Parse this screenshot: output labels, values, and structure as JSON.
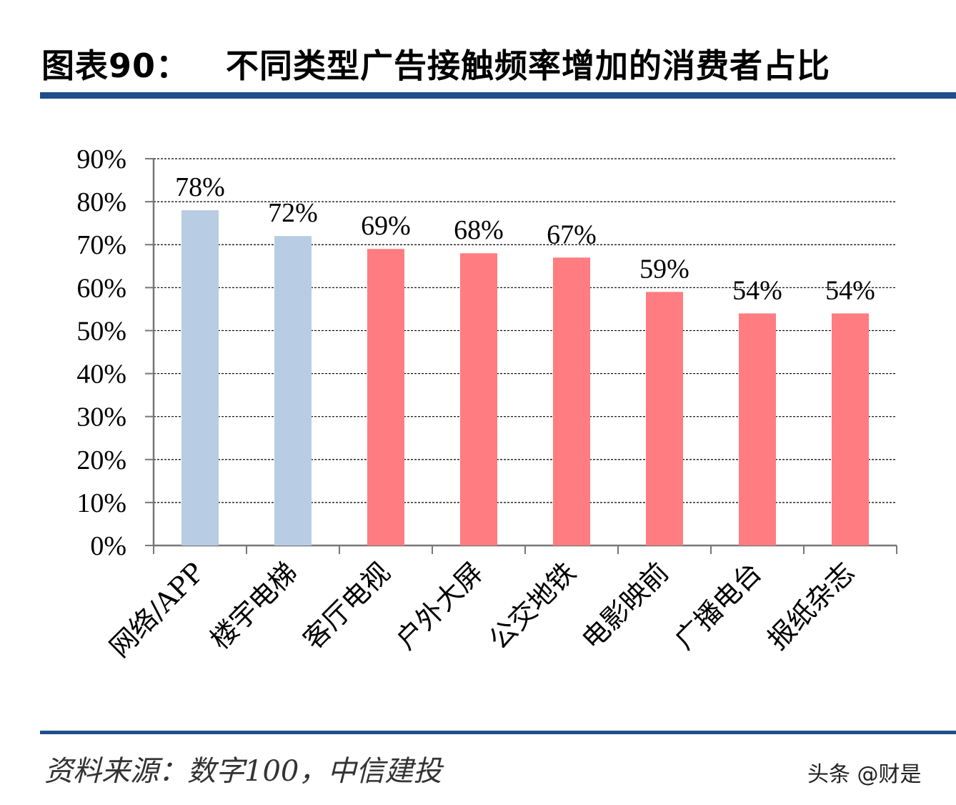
{
  "title": "图表90：   不同类型广告接触频率增加的消费者占比",
  "source": "资料来源：数字100，中信建投",
  "watermark": "头条 @财是",
  "colors": {
    "rule": "#1f4e8c",
    "highlight": "#b8cce4",
    "default": "#ff7c80"
  },
  "chart_data": {
    "type": "bar",
    "categories": [
      "网络/APP",
      "楼宇电梯",
      "客厅电视",
      "户外大屏",
      "公交地铁",
      "电影映前",
      "广播电台",
      "报纸杂志"
    ],
    "values": [
      78,
      72,
      69,
      68,
      67,
      59,
      54,
      54
    ],
    "data_labels": [
      "78%",
      "72%",
      "69%",
      "68%",
      "67%",
      "59%",
      "54%",
      "54%"
    ],
    "bar_colors": [
      "#b8cce4",
      "#b8cce4",
      "#ff7c80",
      "#ff7c80",
      "#ff7c80",
      "#ff7c80",
      "#ff7c80",
      "#ff7c80"
    ],
    "ylim": [
      0,
      90
    ],
    "yticks": [
      "0%",
      "10%",
      "20%",
      "30%",
      "40%",
      "50%",
      "60%",
      "70%",
      "80%",
      "90%"
    ],
    "grid": true,
    "xlabel": "",
    "ylabel": ""
  }
}
